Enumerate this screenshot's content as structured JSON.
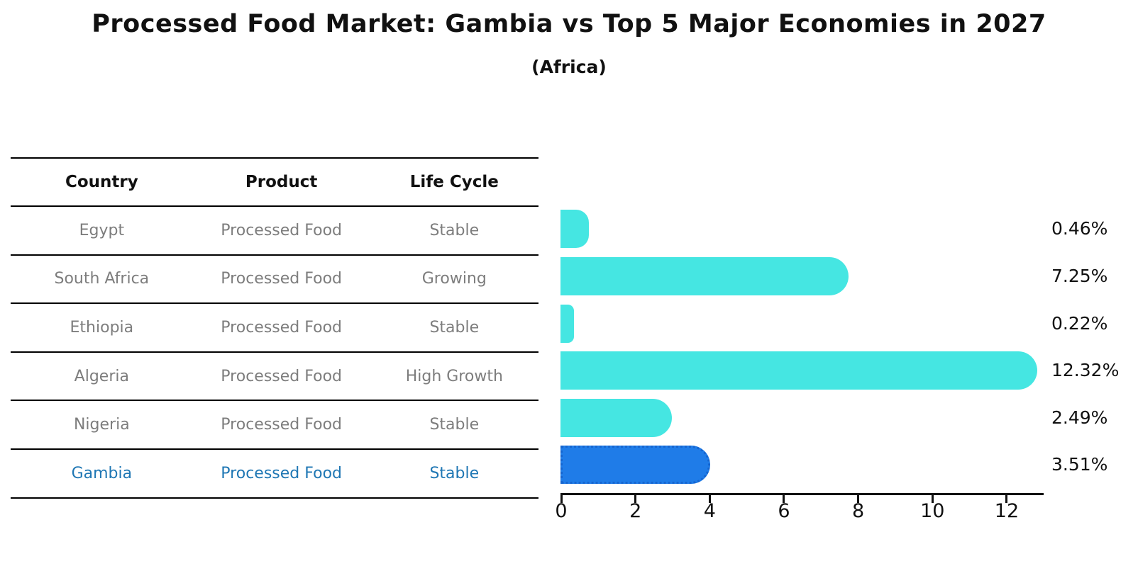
{
  "title": "Processed Food Market: Gambia vs Top 5 Major Economies in 2027",
  "subtitle": "(Africa)",
  "table": {
    "columns": [
      "Country",
      "Product",
      "Life Cycle"
    ],
    "rows": [
      {
        "country": "Egypt",
        "product": "Processed Food",
        "life_cycle": "Stable",
        "highlight": false
      },
      {
        "country": "South Africa",
        "product": "Processed Food",
        "life_cycle": "Growing",
        "highlight": false
      },
      {
        "country": "Ethiopia",
        "product": "Processed Food",
        "life_cycle": "Stable",
        "highlight": false
      },
      {
        "country": "Algeria",
        "product": "Processed Food",
        "life_cycle": "High Growth",
        "highlight": false
      },
      {
        "country": "Nigeria",
        "product": "Processed Food",
        "life_cycle": "Stable",
        "highlight": true,
        "highlight_note": null
      },
      {
        "country": "Gambia",
        "product": "Processed Food",
        "life_cycle": "Stable",
        "highlight": true
      }
    ]
  },
  "chart_data": {
    "type": "bar",
    "orientation": "horizontal",
    "title": "Processed Food Market: Gambia vs Top 5 Major Economies in 2027",
    "subtitle": "(Africa)",
    "categories": [
      "Egypt",
      "South Africa",
      "Ethiopia",
      "Algeria",
      "Nigeria",
      "Gambia"
    ],
    "values": [
      0.46,
      7.25,
      0.22,
      12.32,
      2.49,
      3.51
    ],
    "labels": [
      "0.46%",
      "7.25%",
      "0.22%",
      "12.32%",
      "2.49%",
      "3.51%"
    ],
    "x_ticks": [
      0,
      2,
      4,
      6,
      8,
      10,
      12
    ],
    "xlim": [
      0,
      13
    ],
    "grid": false,
    "legend": "none",
    "highlight_index": 5,
    "colors": {
      "bar": "#45E6E2",
      "highlight_bar": "#1F7CE8",
      "highlight_edge": "#1565D0",
      "value_label": "#111111",
      "axis": "#111111",
      "table_text": "#7d7d7d",
      "table_header_text": "#111111",
      "highlight_text": "#1f77b4"
    }
  }
}
